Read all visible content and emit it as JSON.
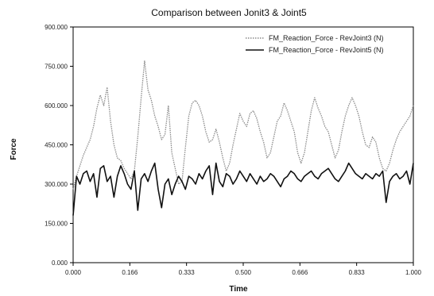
{
  "chart_data": {
    "type": "line",
    "title": "Comparison between Jonit3 & Joint5",
    "xlabel": "Time",
    "ylabel": "Force",
    "xlim": [
      0,
      1
    ],
    "ylim": [
      0,
      900
    ],
    "x_tick_labels": [
      "0.000",
      "0.166",
      "0.333",
      "0.500",
      "0.666",
      "0.833",
      "1.000"
    ],
    "y_tick_labels": [
      "0.000",
      "150.000",
      "300.000",
      "450.000",
      "600.000",
      "750.000",
      "900.000"
    ],
    "grid": false,
    "legend_position": "top-right",
    "series": [
      {
        "name": "FM_Reaction_Force - RevJoint3 (N)",
        "color": "#8a8a8a",
        "style": "dotted",
        "x": [
          0.0,
          0.01,
          0.02,
          0.03,
          0.04,
          0.05,
          0.06,
          0.07,
          0.08,
          0.09,
          0.1,
          0.11,
          0.12,
          0.13,
          0.14,
          0.15,
          0.16,
          0.17,
          0.18,
          0.19,
          0.2,
          0.21,
          0.22,
          0.23,
          0.24,
          0.25,
          0.26,
          0.27,
          0.28,
          0.29,
          0.3,
          0.31,
          0.32,
          0.33,
          0.34,
          0.35,
          0.36,
          0.37,
          0.38,
          0.39,
          0.4,
          0.41,
          0.42,
          0.43,
          0.44,
          0.45,
          0.46,
          0.47,
          0.48,
          0.49,
          0.5,
          0.51,
          0.52,
          0.53,
          0.54,
          0.55,
          0.56,
          0.57,
          0.58,
          0.59,
          0.6,
          0.61,
          0.62,
          0.63,
          0.64,
          0.65,
          0.66,
          0.67,
          0.68,
          0.69,
          0.7,
          0.71,
          0.72,
          0.73,
          0.74,
          0.75,
          0.76,
          0.77,
          0.78,
          0.79,
          0.8,
          0.81,
          0.82,
          0.83,
          0.84,
          0.85,
          0.86,
          0.87,
          0.88,
          0.89,
          0.9,
          0.91,
          0.92,
          0.93,
          0.94,
          0.95,
          0.96,
          0.97,
          0.98,
          0.99,
          1.0
        ],
        "y": [
          280,
          330,
          370,
          410,
          440,
          470,
          520,
          590,
          640,
          600,
          670,
          540,
          450,
          400,
          390,
          360,
          340,
          320,
          350,
          480,
          630,
          770,
          660,
          620,
          560,
          520,
          470,
          490,
          600,
          420,
          360,
          300,
          310,
          440,
          560,
          610,
          620,
          600,
          560,
          500,
          460,
          470,
          510,
          460,
          400,
          350,
          380,
          450,
          510,
          570,
          540,
          520,
          570,
          580,
          550,
          500,
          460,
          400,
          420,
          480,
          540,
          560,
          610,
          580,
          540,
          500,
          420,
          380,
          420,
          500,
          580,
          630,
          590,
          560,
          520,
          500,
          450,
          400,
          430,
          500,
          560,
          600,
          630,
          600,
          560,
          500,
          450,
          440,
          480,
          460,
          400,
          360,
          350,
          380,
          430,
          470,
          500,
          520,
          540,
          560,
          600
        ]
      },
      {
        "name": "FM_Reaction_Force - RevJoint5 (N)",
        "color": "#111111",
        "style": "solid",
        "x": [
          0.0,
          0.01,
          0.02,
          0.03,
          0.04,
          0.05,
          0.06,
          0.07,
          0.08,
          0.09,
          0.1,
          0.11,
          0.12,
          0.13,
          0.14,
          0.15,
          0.16,
          0.17,
          0.18,
          0.19,
          0.2,
          0.21,
          0.22,
          0.23,
          0.24,
          0.25,
          0.26,
          0.27,
          0.28,
          0.29,
          0.3,
          0.31,
          0.32,
          0.33,
          0.34,
          0.35,
          0.36,
          0.37,
          0.38,
          0.39,
          0.4,
          0.41,
          0.42,
          0.43,
          0.44,
          0.45,
          0.46,
          0.47,
          0.48,
          0.49,
          0.5,
          0.51,
          0.52,
          0.53,
          0.54,
          0.55,
          0.56,
          0.57,
          0.58,
          0.59,
          0.6,
          0.61,
          0.62,
          0.63,
          0.64,
          0.65,
          0.66,
          0.67,
          0.68,
          0.69,
          0.7,
          0.71,
          0.72,
          0.73,
          0.74,
          0.75,
          0.76,
          0.77,
          0.78,
          0.79,
          0.8,
          0.81,
          0.82,
          0.83,
          0.84,
          0.85,
          0.86,
          0.87,
          0.88,
          0.89,
          0.9,
          0.91,
          0.92,
          0.93,
          0.94,
          0.95,
          0.96,
          0.97,
          0.98,
          0.99,
          1.0
        ],
        "y": [
          180,
          330,
          300,
          340,
          350,
          310,
          340,
          250,
          360,
          370,
          310,
          330,
          250,
          330,
          370,
          340,
          300,
          280,
          350,
          200,
          320,
          340,
          310,
          350,
          380,
          280,
          210,
          300,
          320,
          260,
          300,
          330,
          310,
          280,
          330,
          320,
          300,
          340,
          320,
          350,
          370,
          260,
          380,
          310,
          290,
          340,
          330,
          300,
          320,
          350,
          330,
          310,
          340,
          320,
          300,
          330,
          310,
          320,
          340,
          330,
          310,
          290,
          320,
          330,
          350,
          340,
          320,
          310,
          330,
          340,
          350,
          330,
          320,
          340,
          350,
          360,
          340,
          320,
          310,
          330,
          350,
          380,
          360,
          340,
          330,
          320,
          340,
          330,
          320,
          340,
          330,
          350,
          230,
          310,
          330,
          340,
          320,
          330,
          350,
          300,
          380
        ]
      }
    ]
  }
}
